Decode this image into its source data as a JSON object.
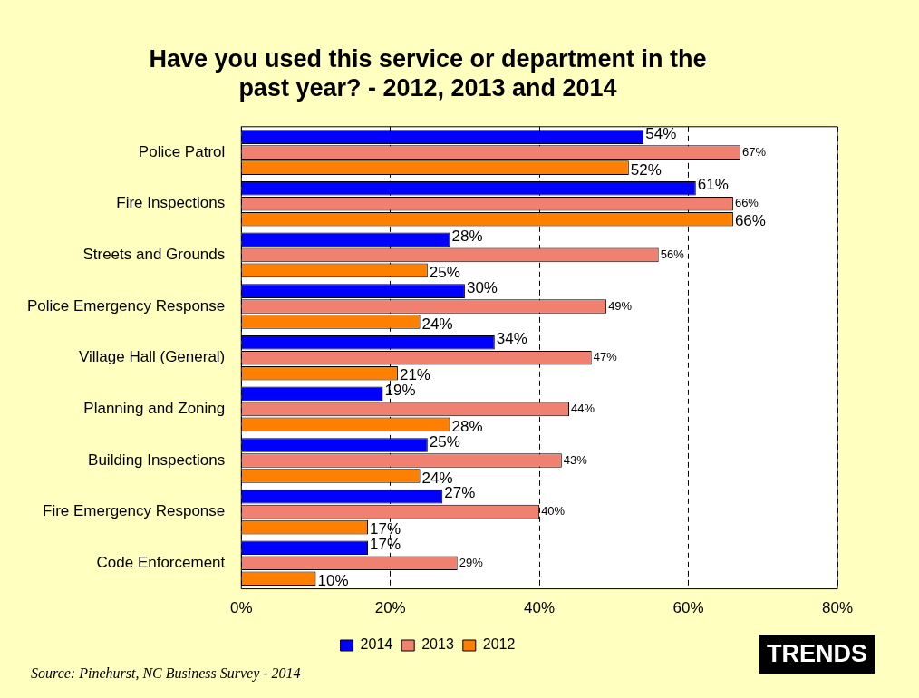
{
  "chart_data": {
    "type": "bar",
    "orientation": "horizontal",
    "title": "Have you used this service or department in the past year? - 2012, 2013 and 2014",
    "categories": [
      "Police Patrol",
      "Fire Inspections",
      "Streets and Grounds",
      "Police Emergency Response",
      "Village Hall (General)",
      "Planning and Zoning",
      "Building Inspections",
      "Fire Emergency Response",
      "Code Enforcement"
    ],
    "series": [
      {
        "name": "2014",
        "color": "#0000ff",
        "values": [
          54,
          61,
          28,
          30,
          34,
          19,
          25,
          27,
          17
        ],
        "value_labels": [
          "54%",
          "61%",
          "28%",
          "30%",
          "34%",
          "19%",
          "25%",
          "27%",
          "17%"
        ]
      },
      {
        "name": "2013",
        "color": "#f08070",
        "values": [
          67,
          66,
          56,
          49,
          47,
          44,
          43,
          40,
          29
        ],
        "value_labels": [
          "67%",
          "66%",
          "56%",
          "49%",
          "47%",
          "44%",
          "43%",
          "40%",
          "29%"
        ]
      },
      {
        "name": "2012",
        "color": "#ff8000",
        "values": [
          52,
          66,
          25,
          24,
          21,
          28,
          24,
          17,
          10
        ],
        "value_labels": [
          "52%",
          "66%",
          "25%",
          "24%",
          "21%",
          "28%",
          "24%",
          "17%",
          "10%"
        ]
      }
    ],
    "xlim": [
      0,
      80
    ],
    "xticks": [
      {
        "value": 0,
        "label": "0%"
      },
      {
        "value": 20,
        "label": "20%"
      },
      {
        "value": 40,
        "label": "40%"
      },
      {
        "value": 60,
        "label": "60%"
      },
      {
        "value": 80,
        "label": "80%"
      }
    ],
    "grid": "x",
    "legend": "bottom",
    "annotations": [
      "Source: Pinehurst, NC Business Survey - 2014",
      "TRENDS"
    ]
  }
}
